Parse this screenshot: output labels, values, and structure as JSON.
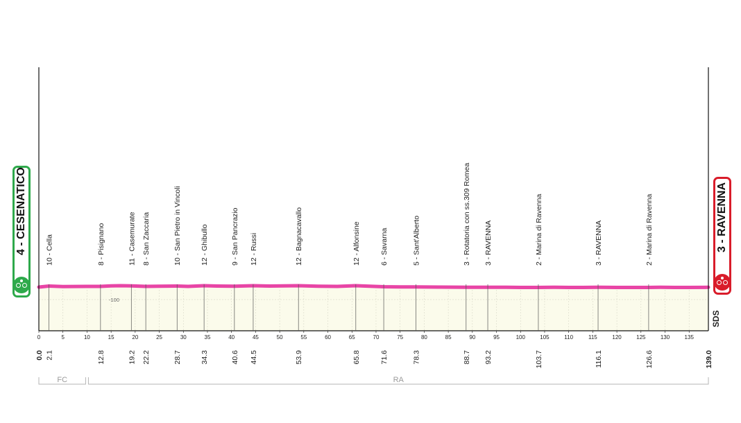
{
  "chart_data": {
    "type": "area",
    "title": "",
    "xlabel": "",
    "ylabel": "",
    "xlim": [
      0,
      139
    ],
    "ylim": [
      -100,
      0
    ],
    "ytick_labels": [
      "-100"
    ],
    "grid": true,
    "start": {
      "label": "4 - CESENATICO",
      "altitude": 4,
      "km": "0.0"
    },
    "finish": {
      "label": "3 - RAVENNA",
      "altitude": 3,
      "km": "139.0"
    },
    "x_ticks": [
      0,
      5,
      10,
      15,
      20,
      25,
      30,
      35,
      40,
      45,
      50,
      55,
      60,
      65,
      70,
      75,
      80,
      85,
      90,
      95,
      100,
      105,
      110,
      115,
      120,
      125,
      130,
      135
    ],
    "waypoints": [
      {
        "km": 2.1,
        "km_label": "2.1",
        "label": "10 - Cella"
      },
      {
        "km": 12.8,
        "km_label": "12.8",
        "label": "8 - Pisignano"
      },
      {
        "km": 19.2,
        "km_label": "19.2",
        "label": "11 - Casemurate"
      },
      {
        "km": 22.2,
        "km_label": "22.2",
        "label": "8 - San Zaccaria"
      },
      {
        "km": 28.7,
        "km_label": "28.7",
        "label": "10 - San Pietro in Vincoli"
      },
      {
        "km": 34.3,
        "km_label": "34.3",
        "label": "12 - Ghibullo"
      },
      {
        "km": 40.6,
        "km_label": "40.6",
        "label": "9 - San Pancrazio"
      },
      {
        "km": 44.5,
        "km_label": "44.5",
        "label": "12 - Russi"
      },
      {
        "km": 53.9,
        "km_label": "53.9",
        "label": "12 - Bagnacavallo"
      },
      {
        "km": 65.8,
        "km_label": "65.8",
        "label": "12 - Alfonsine"
      },
      {
        "km": 71.6,
        "km_label": "71.6",
        "label": "6 - Savarna"
      },
      {
        "km": 78.3,
        "km_label": "78.3",
        "label": "5 - Sant'Alberto"
      },
      {
        "km": 88.7,
        "km_label": "88.7",
        "label": "3 - Rotatoria con ss.309 Romea"
      },
      {
        "km": 93.2,
        "km_label": "93.2",
        "label": "3 - RAVENNA"
      },
      {
        "km": 103.7,
        "km_label": "103.7",
        "label": "2 - Marina di Ravenna"
      },
      {
        "km": 116.1,
        "km_label": "116.1",
        "label": "3 - RAVENNA"
      },
      {
        "km": 126.6,
        "km_label": "126.6",
        "label": "2 - Marina di Ravenna"
      }
    ],
    "profile": [
      [
        0,
        4
      ],
      [
        2.1,
        10
      ],
      [
        5,
        7
      ],
      [
        10,
        8
      ],
      [
        12.8,
        8
      ],
      [
        15,
        11
      ],
      [
        17,
        12
      ],
      [
        19.2,
        11
      ],
      [
        22.2,
        8
      ],
      [
        25,
        9
      ],
      [
        28.7,
        10
      ],
      [
        31,
        8
      ],
      [
        34.3,
        12
      ],
      [
        37,
        10
      ],
      [
        40.6,
        9
      ],
      [
        44.5,
        12
      ],
      [
        48,
        10
      ],
      [
        53.9,
        12
      ],
      [
        58,
        9
      ],
      [
        62,
        8
      ],
      [
        65.8,
        12
      ],
      [
        71.6,
        6
      ],
      [
        75,
        5
      ],
      [
        78.3,
        5
      ],
      [
        83,
        4
      ],
      [
        88.7,
        3
      ],
      [
        93.2,
        3
      ],
      [
        97,
        3
      ],
      [
        100,
        2
      ],
      [
        103.7,
        2
      ],
      [
        107,
        3
      ],
      [
        110,
        2
      ],
      [
        113,
        2
      ],
      [
        116.1,
        3
      ],
      [
        120,
        2
      ],
      [
        124,
        2
      ],
      [
        126.6,
        2
      ],
      [
        129,
        3
      ],
      [
        132,
        2
      ],
      [
        135,
        2
      ],
      [
        139,
        3
      ]
    ],
    "regions": [
      {
        "label": "FC",
        "from": 0,
        "to": 10
      },
      {
        "label": "RA",
        "from": 10,
        "to": 139
      }
    ],
    "logo_text": "SDS"
  },
  "colors": {
    "profile_line": "#e845a6",
    "profile_fill": "#fbfbeb",
    "start_sign": "#2ea94b",
    "finish_sign": "#d91c2a"
  },
  "icons": {
    "start": "cyclist-icon",
    "finish": "cyclist-icon"
  }
}
